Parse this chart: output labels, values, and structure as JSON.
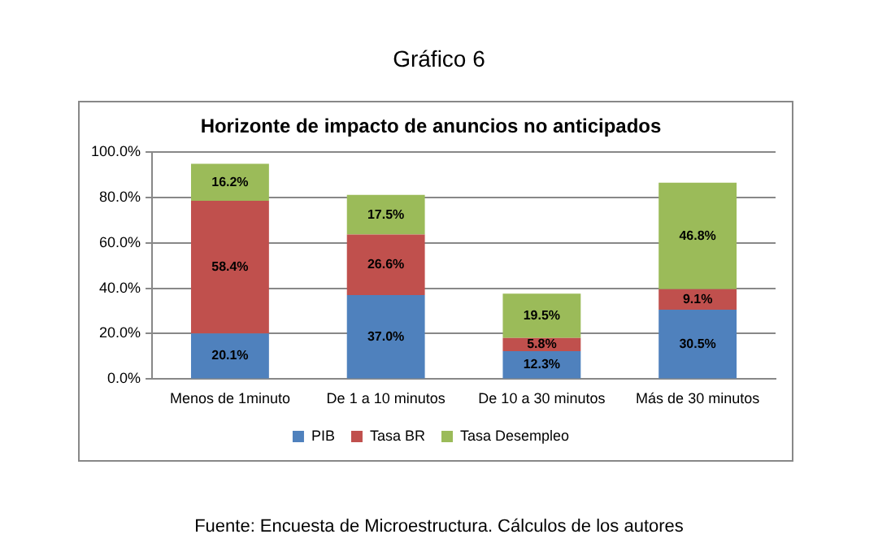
{
  "chart_data": {
    "type": "bar",
    "title": "Gráfico 6",
    "subtitle": "Horizonte de impacto de anuncios no anticipados",
    "categories": [
      "Menos de 1minuto",
      "De 1 a 10 minutos",
      "De 10 a 30 minutos",
      "Más de 30 minutos"
    ],
    "series": [
      {
        "name": "PIB",
        "color": "#4f81bd",
        "values": [
          20.1,
          37.0,
          12.3,
          30.5
        ],
        "value_labels": [
          "20.1%",
          "37.0%",
          "12.3%",
          "30.5%"
        ]
      },
      {
        "name": "Tasa BR",
        "color": "#c0504d",
        "values": [
          58.4,
          26.6,
          5.8,
          9.1
        ],
        "value_labels": [
          "58.4%",
          "26.6%",
          "5.8%",
          "9.1%"
        ]
      },
      {
        "name": "Tasa Desempleo",
        "color": "#9bbb59",
        "values": [
          16.2,
          17.5,
          19.5,
          46.8
        ],
        "value_labels": [
          "16.2%",
          "17.5%",
          "19.5%",
          "46.8%"
        ]
      }
    ],
    "stacked": true,
    "ylim": [
      0,
      100
    ],
    "yticks": [
      {
        "value": 0,
        "label": "0.0%"
      },
      {
        "value": 20,
        "label": "20.0%"
      },
      {
        "value": 40,
        "label": "40.0%"
      },
      {
        "value": 60,
        "label": "60.0%"
      },
      {
        "value": 80,
        "label": "80.0%"
      },
      {
        "value": 100,
        "label": "100.0%"
      }
    ],
    "grid": "y",
    "legend": "bottom",
    "annotations": [
      "Fuente: Encuesta de Microestructura. Cálculos de los autores"
    ]
  }
}
